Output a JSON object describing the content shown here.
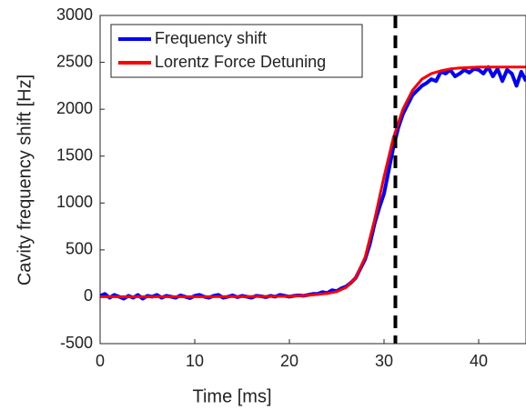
{
  "chart_data": {
    "type": "line",
    "xlabel": "Time [ms]",
    "ylabel": "Cavity frequency shift [Hz]",
    "xlim": [
      0,
      45
    ],
    "xticks": [
      0,
      10,
      20,
      30,
      40
    ],
    "ylim": [
      -500,
      3000
    ],
    "yticks": [
      -500,
      0,
      500,
      1000,
      1500,
      2000,
      2500,
      3000
    ],
    "legend": "upper left",
    "vline": 31.2,
    "vline_color": "#000000",
    "series": [
      {
        "name": "Frequency shift",
        "color": "#0000ff",
        "x": [
          0,
          0.5,
          1,
          1.5,
          2,
          2.5,
          3,
          3.5,
          4,
          4.5,
          5,
          5.5,
          6,
          6.5,
          7,
          7.5,
          8,
          8.5,
          9,
          9.5,
          10,
          10.5,
          11,
          11.5,
          12,
          12.5,
          13,
          13.5,
          14,
          14.5,
          15,
          15.5,
          16,
          16.5,
          17,
          17.5,
          18,
          18.5,
          19,
          19.5,
          20,
          20.5,
          21,
          21.5,
          22,
          22.5,
          23,
          23.5,
          24,
          24.5,
          25,
          25.5,
          26,
          26.5,
          27,
          27.5,
          28,
          28.5,
          29,
          29.5,
          30,
          30.5,
          31,
          31.5,
          32,
          32.5,
          33,
          33.5,
          34,
          34.5,
          35,
          35.5,
          36,
          36.5,
          37,
          37.5,
          38,
          38.5,
          39,
          39.5,
          40,
          40.5,
          41,
          41.5,
          42,
          42.5,
          43,
          43.5,
          44,
          44.5,
          45
        ],
        "values": [
          10,
          30,
          -10,
          20,
          0,
          -20,
          10,
          -10,
          20,
          -20,
          10,
          0,
          20,
          -10,
          10,
          0,
          -10,
          15,
          0,
          -15,
          10,
          20,
          0,
          -10,
          10,
          20,
          -10,
          0,
          15,
          -5,
          10,
          0,
          -10,
          10,
          5,
          -5,
          10,
          0,
          20,
          10,
          0,
          10,
          15,
          10,
          20,
          30,
          30,
          50,
          40,
          70,
          60,
          90,
          110,
          150,
          200,
          300,
          400,
          560,
          780,
          950,
          1100,
          1350,
          1600,
          1800,
          1950,
          2050,
          2150,
          2200,
          2250,
          2280,
          2320,
          2300,
          2400,
          2380,
          2420,
          2350,
          2380,
          2420,
          2390,
          2430,
          2420,
          2380,
          2450,
          2350,
          2430,
          2300,
          2420,
          2380,
          2250,
          2400,
          2300
        ]
      },
      {
        "name": "Lorentz Force Detuning",
        "color": "#ff0000",
        "x": [
          0,
          5,
          10,
          15,
          20,
          22,
          24,
          25,
          26,
          27,
          28,
          29,
          30,
          31,
          32,
          33,
          34,
          35,
          36,
          37,
          38,
          40,
          42,
          45
        ],
        "values": [
          0,
          0,
          0,
          2,
          5,
          15,
          35,
          55,
          100,
          200,
          420,
          820,
          1280,
          1700,
          2000,
          2200,
          2320,
          2380,
          2410,
          2430,
          2440,
          2450,
          2450,
          2450
        ]
      }
    ]
  }
}
